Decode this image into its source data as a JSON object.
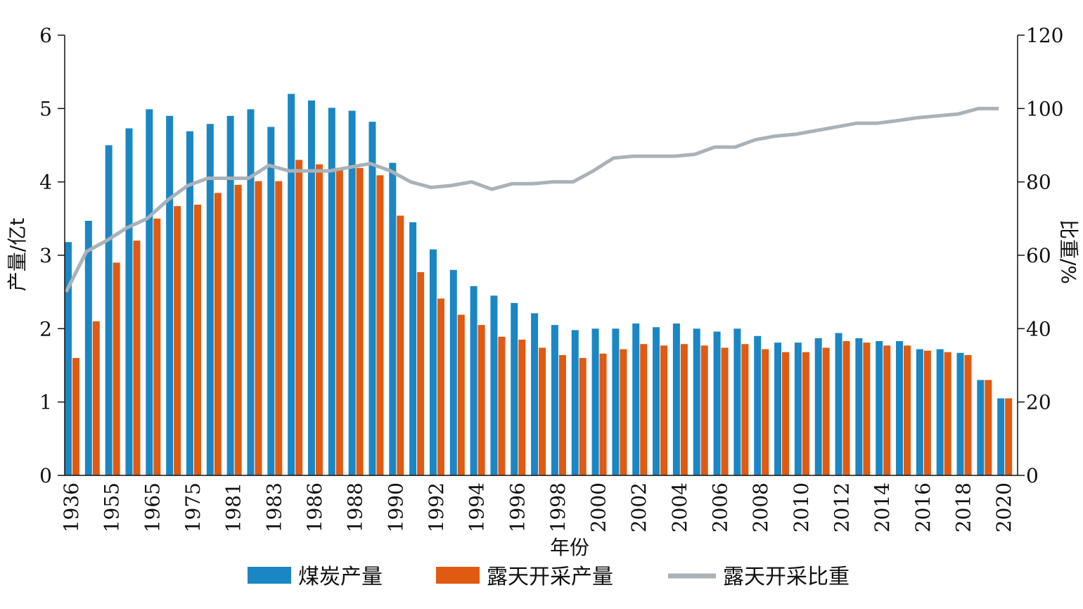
{
  "chart_data": {
    "type": "bar",
    "x_tick_labels": [
      "1936",
      "1955",
      "1965",
      "1975",
      "1981",
      "1983",
      "1986",
      "1988",
      "1990",
      "1992",
      "1994",
      "1996",
      "1998",
      "2000",
      "2002",
      "2004",
      "2006",
      "2008",
      "2010",
      "2012",
      "2014",
      "2016",
      "2018",
      "2020"
    ],
    "series": [
      {
        "name": "煤炭产量",
        "kind": "bar",
        "axis": "left",
        "color": "#1a87c4",
        "values": [
          3.18,
          3.47,
          4.5,
          4.73,
          4.99,
          4.9,
          4.69,
          4.79,
          4.9,
          4.99,
          4.75,
          5.2,
          5.11,
          5.01,
          4.97,
          4.82,
          4.26,
          3.45,
          3.08,
          2.8,
          2.58,
          2.45,
          2.35,
          2.21,
          2.05,
          1.98,
          2.0,
          2.0,
          2.07,
          2.02,
          2.07,
          2.0,
          1.96,
          2.0,
          1.9,
          1.81,
          1.81,
          1.87,
          1.94,
          1.87,
          1.83,
          1.83,
          1.72,
          1.72,
          1.67,
          1.3,
          1.05
        ]
      },
      {
        "name": "露天开采产量",
        "kind": "bar",
        "axis": "left",
        "color": "#e05a12",
        "values": [
          1.6,
          2.1,
          2.9,
          3.2,
          3.5,
          3.67,
          3.69,
          3.85,
          3.96,
          4.01,
          4.01,
          4.3,
          4.24,
          4.16,
          4.19,
          4.09,
          3.54,
          2.77,
          2.41,
          2.19,
          2.05,
          1.89,
          1.85,
          1.74,
          1.64,
          1.6,
          1.66,
          1.72,
          1.79,
          1.77,
          1.79,
          1.77,
          1.74,
          1.79,
          1.72,
          1.68,
          1.68,
          1.74,
          1.83,
          1.81,
          1.77,
          1.77,
          1.7,
          1.68,
          1.64,
          1.3,
          1.05
        ]
      },
      {
        "name": "露天开采比重",
        "kind": "line",
        "axis": "right",
        "color": "#a9b2b9",
        "values": [
          50,
          61,
          64,
          67.5,
          70,
          75,
          79,
          81,
          81,
          81,
          84.5,
          83,
          83,
          83,
          84,
          85,
          83,
          80,
          78.5,
          79,
          80,
          78,
          79.5,
          79.5,
          80,
          80,
          83,
          86.5,
          87,
          87,
          87,
          87.5,
          89.5,
          89.5,
          91.5,
          92.5,
          93,
          94,
          95,
          96,
          96,
          96.7,
          97.5,
          98,
          98.5,
          100,
          100
        ]
      }
    ],
    "left_axis": {
      "title": "产量/亿t",
      "min": 0,
      "max": 6,
      "ticks": [
        "0",
        "1",
        "2",
        "3",
        "4",
        "5",
        "6"
      ]
    },
    "right_axis": {
      "title": "比重/%",
      "min": 0,
      "max": 120,
      "ticks": [
        "0",
        "20",
        "40",
        "60",
        "80",
        "100",
        "120"
      ]
    },
    "xlabel": "年份",
    "legend": {
      "placement": "bottom",
      "items": [
        "煤炭产量",
        "露天开采产量",
        "露天开采比重"
      ]
    },
    "grid": false
  }
}
